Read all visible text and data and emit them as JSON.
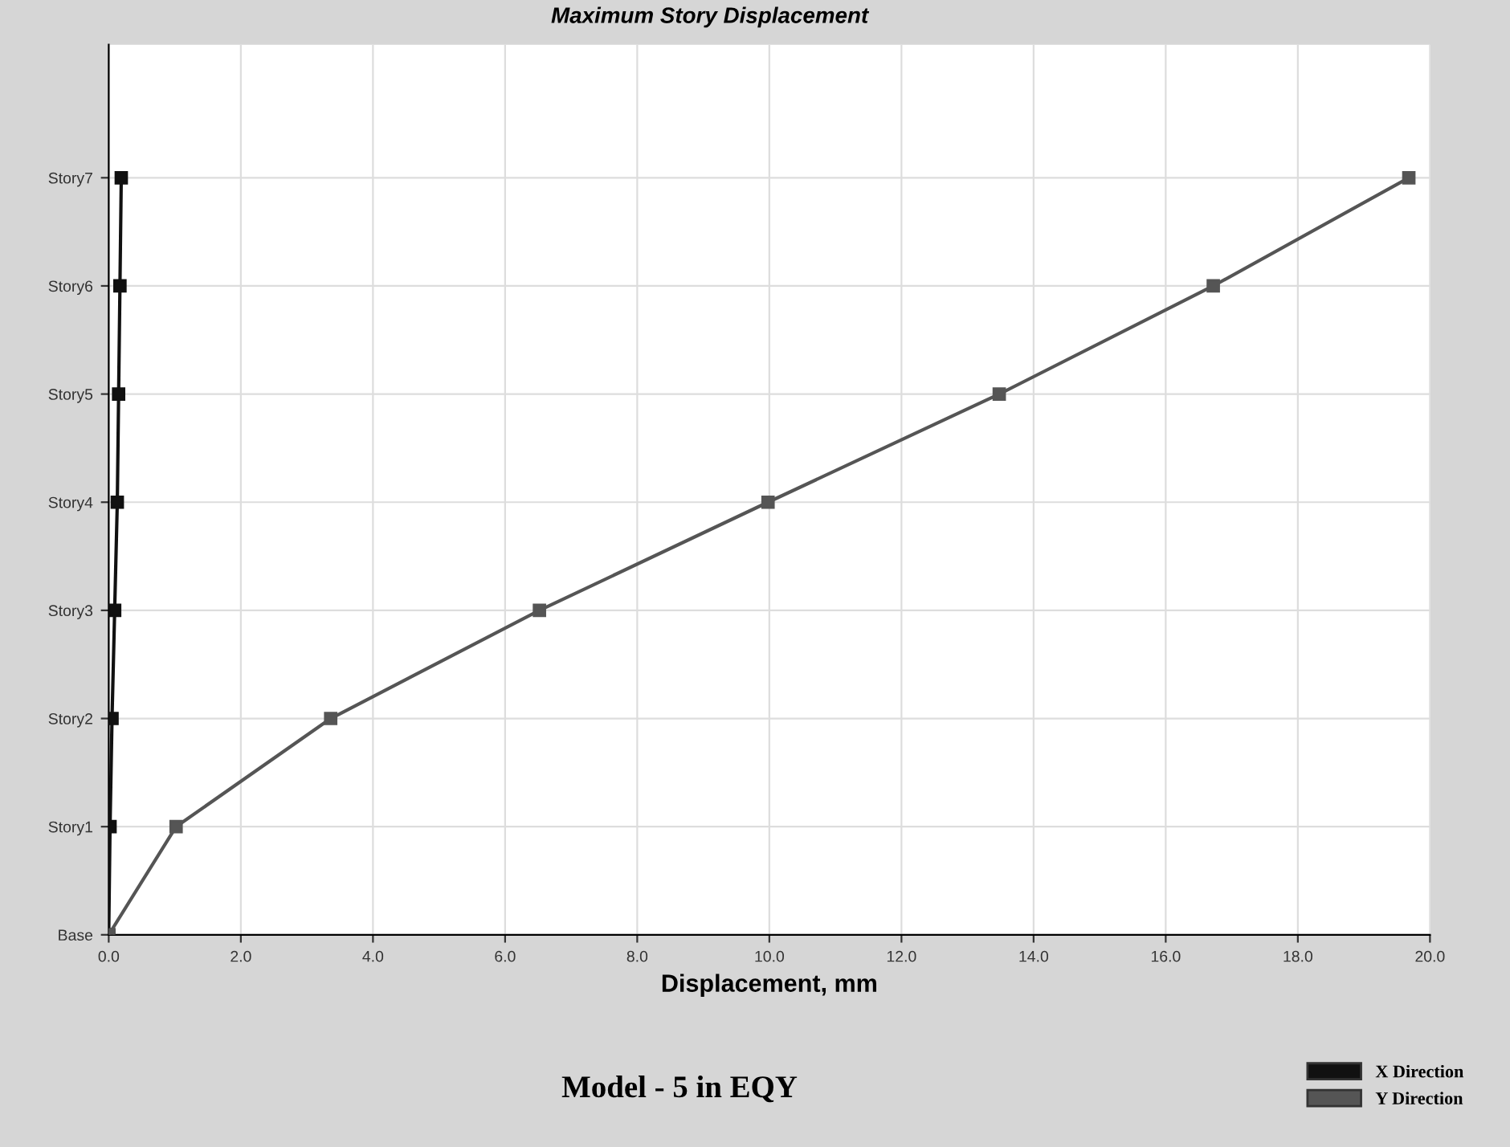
{
  "chart_data": {
    "type": "line",
    "orientation": "horizontal",
    "title": "Maximum Story Displacement",
    "xlabel": "Displacement, mm",
    "categories": [
      "Story7",
      "Story6",
      "Story5",
      "Story4",
      "Story3",
      "Story2",
      "Story1",
      "Base"
    ],
    "series": [
      {
        "name": "X Direction",
        "color": "#111111",
        "values": [
          0.19,
          0.17,
          0.15,
          0.13,
          0.09,
          0.05,
          0.02,
          0
        ]
      },
      {
        "name": "Y Direction",
        "color": "#555555",
        "values": [
          19.68,
          16.72,
          13.48,
          9.98,
          6.52,
          3.36,
          1.02,
          0
        ]
      }
    ],
    "xlim": [
      0,
      20
    ],
    "xticks": [
      {
        "value": 0,
        "label": "0.0"
      },
      {
        "value": 2,
        "label": "2.0"
      },
      {
        "value": 4,
        "label": "4.0"
      },
      {
        "value": 6,
        "label": "6.0"
      },
      {
        "value": 8,
        "label": "8.0"
      },
      {
        "value": 10,
        "label": "10.0"
      },
      {
        "value": 12,
        "label": "12.0"
      },
      {
        "value": 14,
        "label": "14.0"
      },
      {
        "value": 16,
        "label": "16.0"
      },
      {
        "value": 18,
        "label": "18.0"
      },
      {
        "value": 20,
        "label": "20.0"
      }
    ],
    "grid": true,
    "legend": "bottom right",
    "marker": "square",
    "line_style": "solid",
    "annotations": [
      "Model - 5 in EQY"
    ]
  }
}
